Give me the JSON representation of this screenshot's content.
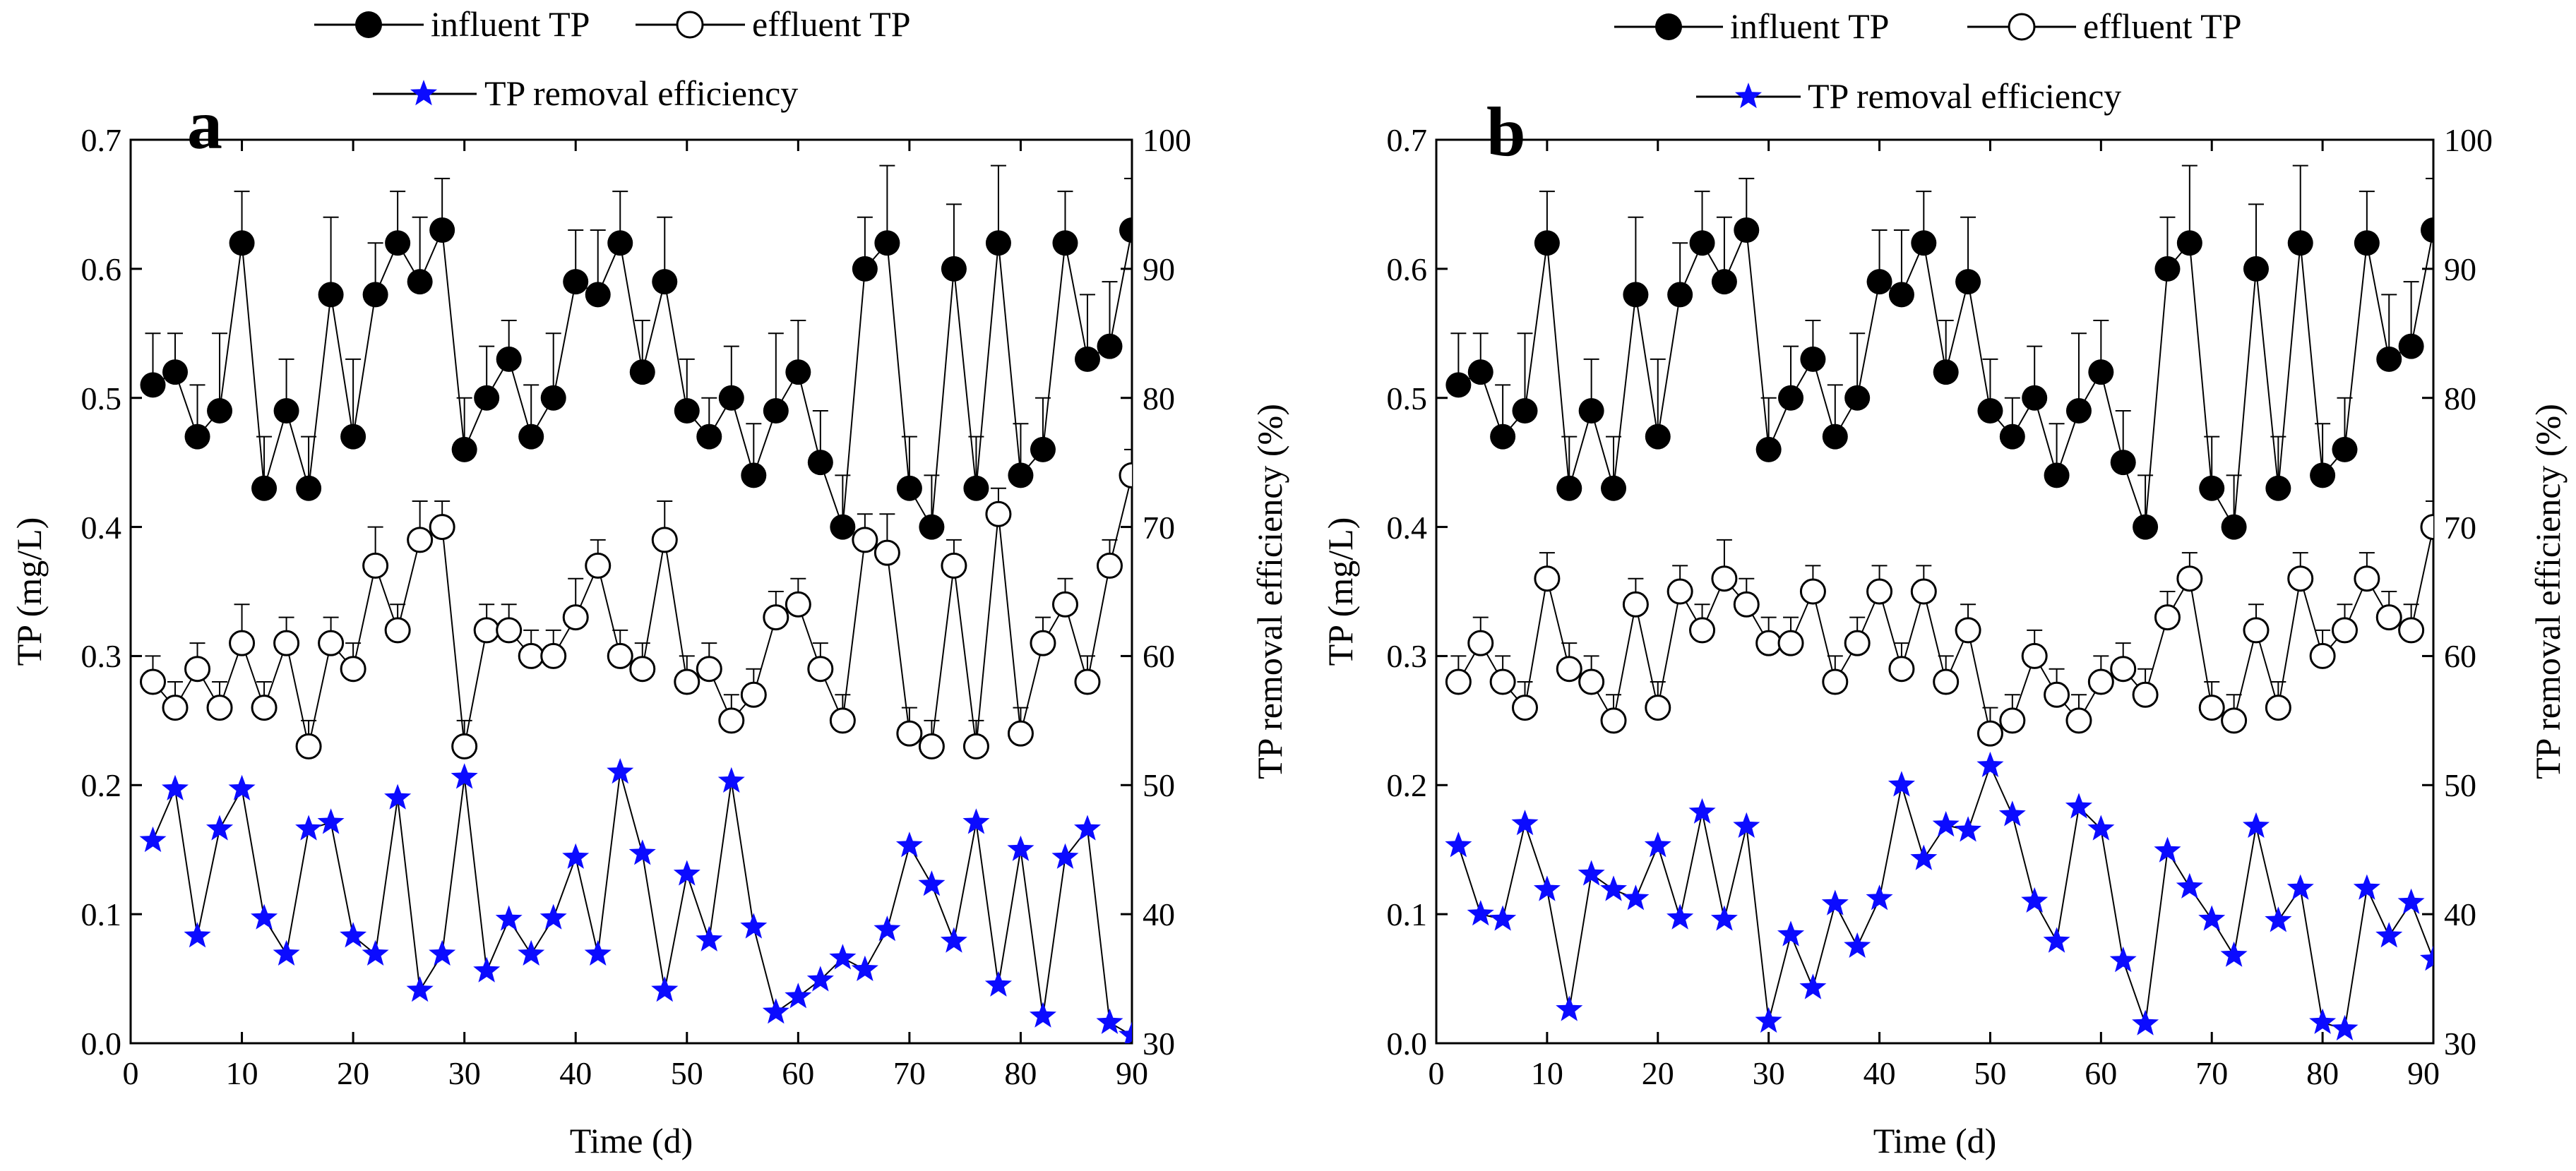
{
  "colors": {
    "axis": "#000000",
    "series": "#000000",
    "efficiency": "#0b0bff",
    "marker_fill_open": "#ffffff"
  },
  "legend": {
    "influent_label": "influent TP",
    "effluent_label": "effluent TP",
    "efficiency_label": "TP removal efficiency"
  },
  "chart_data": [
    {
      "type": "line",
      "panel_label": "a",
      "xlabel": "Time (d)",
      "ylabel": "TP (mg/L)",
      "y2label": "TP removal efficiency (%)",
      "xlim": [
        0,
        90
      ],
      "ylim": [
        0,
        0.7
      ],
      "y2lim": [
        30,
        100
      ],
      "xticks": [
        0,
        10,
        20,
        30,
        40,
        50,
        60,
        70,
        80,
        90
      ],
      "yticks": [
        0.0,
        0.1,
        0.2,
        0.3,
        0.4,
        0.5,
        0.6,
        0.7
      ],
      "y2ticks": [
        30,
        40,
        50,
        60,
        70,
        80,
        90,
        100
      ],
      "xtick_labels": [
        "0",
        "10",
        "20",
        "30",
        "40",
        "50",
        "60",
        "70",
        "80",
        "90"
      ],
      "ytick_labels": [
        "0.0",
        "0.1",
        "0.2",
        "0.3",
        "0.4",
        "0.5",
        "0.6",
        "0.7"
      ],
      "y2tick_labels": [
        "30",
        "40",
        "50",
        "60",
        "70",
        "80",
        "90",
        "100"
      ],
      "x": [
        2,
        4,
        6,
        8,
        10,
        12,
        14,
        16,
        18,
        20,
        22,
        24,
        26,
        28,
        30,
        32,
        34,
        36,
        38,
        40,
        42,
        44,
        46,
        48,
        50,
        52,
        54,
        56,
        58,
        60,
        62,
        64,
        66,
        68,
        70,
        72,
        74,
        76,
        78,
        80,
        82,
        84,
        86,
        88,
        90
      ],
      "series": [
        {
          "name": "influent TP",
          "axis": "left",
          "marker": "filled-circle",
          "values": [
            0.51,
            0.52,
            0.47,
            0.49,
            0.62,
            0.43,
            0.49,
            0.43,
            0.58,
            0.47,
            0.58,
            0.62,
            0.59,
            0.63,
            0.46,
            0.5,
            0.53,
            0.47,
            0.5,
            0.59,
            0.58,
            0.62,
            0.52,
            0.59,
            0.49,
            0.47,
            0.5,
            0.44,
            0.49,
            0.52,
            0.45,
            0.4,
            0.6,
            0.62,
            0.43,
            0.4,
            0.6,
            0.43,
            0.62,
            0.44,
            0.46,
            0.62,
            0.53,
            0.54,
            0.63
          ],
          "errors": [
            0.04,
            0.03,
            0.04,
            0.06,
            0.04,
            0.04,
            0.04,
            0.04,
            0.06,
            0.06,
            0.04,
            0.04,
            0.05,
            0.04,
            0.04,
            0.04,
            0.03,
            0.04,
            0.05,
            0.04,
            0.05,
            0.04,
            0.04,
            0.05,
            0.04,
            0.03,
            0.04,
            0.04,
            0.06,
            0.04,
            0.04,
            0.04,
            0.04,
            0.06,
            0.04,
            0.04,
            0.05,
            0.04,
            0.06,
            0.04,
            0.04,
            0.04,
            0.05,
            0.05,
            0.04
          ]
        },
        {
          "name": "effluent TP",
          "axis": "left",
          "marker": "open-circle",
          "values": [
            0.28,
            0.26,
            0.29,
            0.26,
            0.31,
            0.26,
            0.31,
            0.23,
            0.31,
            0.29,
            0.37,
            0.32,
            0.39,
            0.4,
            0.23,
            0.32,
            0.32,
            0.3,
            0.3,
            0.33,
            0.37,
            0.3,
            0.29,
            0.39,
            0.28,
            0.29,
            0.25,
            0.27,
            0.33,
            0.34,
            0.29,
            0.25,
            0.39,
            0.38,
            0.24,
            0.23,
            0.37,
            0.23,
            0.41,
            0.24,
            0.31,
            0.34,
            0.28,
            0.37,
            0.44
          ],
          "errors": [
            0.02,
            0.02,
            0.02,
            0.02,
            0.03,
            0.02,
            0.02,
            0.02,
            0.02,
            0.02,
            0.03,
            0.02,
            0.03,
            0.02,
            0.02,
            0.02,
            0.02,
            0.02,
            0.02,
            0.03,
            0.02,
            0.02,
            0.02,
            0.03,
            0.02,
            0.02,
            0.02,
            0.02,
            0.02,
            0.02,
            0.02,
            0.02,
            0.02,
            0.03,
            0.02,
            0.02,
            0.02,
            0.02,
            0.02,
            0.02,
            0.02,
            0.02,
            0.02,
            0.02,
            0.02
          ]
        },
        {
          "name": "TP removal efficiency",
          "axis": "right",
          "marker": "star",
          "values": [
            45.7,
            49.7,
            38.3,
            46.6,
            49.7,
            39.7,
            36.9,
            46.6,
            47.1,
            38.3,
            36.9,
            49.0,
            34.1,
            36.9,
            50.6,
            35.6,
            39.6,
            36.9,
            39.7,
            44.4,
            36.9,
            51.0,
            44.7,
            34.1,
            43.1,
            38.0,
            50.3,
            39.0,
            32.4,
            33.6,
            34.9,
            36.6,
            35.7,
            38.8,
            45.3,
            42.3,
            37.9,
            47.1,
            34.5,
            45.0,
            32.1,
            44.4,
            46.6,
            31.6,
            30.6
          ]
        }
      ]
    },
    {
      "type": "line",
      "panel_label": "b",
      "xlabel": "Time (d)",
      "ylabel": "TP (mg/L)",
      "y2label": "TP removal efficiency (%)",
      "xlim": [
        0,
        90
      ],
      "ylim": [
        0,
        0.7
      ],
      "y2lim": [
        30,
        100
      ],
      "xticks": [
        0,
        10,
        20,
        30,
        40,
        50,
        60,
        70,
        80,
        90
      ],
      "yticks": [
        0.0,
        0.1,
        0.2,
        0.3,
        0.4,
        0.5,
        0.6,
        0.7
      ],
      "y2ticks": [
        30,
        40,
        50,
        60,
        70,
        80,
        90,
        100
      ],
      "xtick_labels": [
        "0",
        "10",
        "20",
        "30",
        "40",
        "50",
        "60",
        "70",
        "80",
        "90"
      ],
      "ytick_labels": [
        "0.0",
        "0.1",
        "0.2",
        "0.3",
        "0.4",
        "0.5",
        "0.6",
        "0.7"
      ],
      "y2tick_labels": [
        "30",
        "40",
        "50",
        "60",
        "70",
        "80",
        "90",
        "100"
      ],
      "x": [
        2,
        4,
        6,
        8,
        10,
        12,
        14,
        16,
        18,
        20,
        22,
        24,
        26,
        28,
        30,
        32,
        34,
        36,
        38,
        40,
        42,
        44,
        46,
        48,
        50,
        52,
        54,
        56,
        58,
        60,
        62,
        64,
        66,
        68,
        70,
        72,
        74,
        76,
        78,
        80,
        82,
        84,
        86,
        88,
        90
      ],
      "series": [
        {
          "name": "influent TP",
          "axis": "left",
          "marker": "filled-circle",
          "values": [
            0.51,
            0.52,
            0.47,
            0.49,
            0.62,
            0.43,
            0.49,
            0.43,
            0.58,
            0.47,
            0.58,
            0.62,
            0.59,
            0.63,
            0.46,
            0.5,
            0.53,
            0.47,
            0.5,
            0.59,
            0.58,
            0.62,
            0.52,
            0.59,
            0.49,
            0.47,
            0.5,
            0.44,
            0.49,
            0.52,
            0.45,
            0.4,
            0.6,
            0.62,
            0.43,
            0.4,
            0.6,
            0.43,
            0.62,
            0.44,
            0.46,
            0.62,
            0.53,
            0.54,
            0.63
          ],
          "errors": [
            0.04,
            0.03,
            0.04,
            0.06,
            0.04,
            0.04,
            0.04,
            0.04,
            0.06,
            0.06,
            0.04,
            0.04,
            0.05,
            0.04,
            0.04,
            0.04,
            0.03,
            0.04,
            0.05,
            0.04,
            0.05,
            0.04,
            0.04,
            0.05,
            0.04,
            0.03,
            0.04,
            0.04,
            0.06,
            0.04,
            0.04,
            0.04,
            0.04,
            0.06,
            0.04,
            0.04,
            0.05,
            0.04,
            0.06,
            0.04,
            0.04,
            0.04,
            0.05,
            0.05,
            0.04
          ]
        },
        {
          "name": "effluent TP",
          "axis": "left",
          "marker": "open-circle",
          "values": [
            0.28,
            0.31,
            0.28,
            0.26,
            0.36,
            0.29,
            0.28,
            0.25,
            0.34,
            0.26,
            0.35,
            0.32,
            0.36,
            0.34,
            0.31,
            0.31,
            0.35,
            0.28,
            0.31,
            0.35,
            0.29,
            0.35,
            0.28,
            0.32,
            0.24,
            0.25,
            0.3,
            0.27,
            0.25,
            0.28,
            0.29,
            0.27,
            0.33,
            0.36,
            0.26,
            0.25,
            0.32,
            0.26,
            0.36,
            0.3,
            0.32,
            0.36,
            0.33,
            0.32,
            0.4
          ],
          "errors": [
            0.02,
            0.02,
            0.02,
            0.02,
            0.02,
            0.02,
            0.02,
            0.02,
            0.02,
            0.02,
            0.02,
            0.02,
            0.03,
            0.02,
            0.02,
            0.02,
            0.02,
            0.02,
            0.02,
            0.02,
            0.02,
            0.02,
            0.02,
            0.02,
            0.02,
            0.02,
            0.02,
            0.02,
            0.02,
            0.02,
            0.02,
            0.02,
            0.02,
            0.02,
            0.02,
            0.02,
            0.02,
            0.02,
            0.02,
            0.02,
            0.02,
            0.02,
            0.02,
            0.02,
            0.02
          ]
        },
        {
          "name": "TP removal efficiency",
          "axis": "right",
          "marker": "star",
          "values": [
            45.3,
            40.0,
            39.6,
            47.0,
            41.9,
            32.6,
            43.1,
            41.9,
            41.2,
            45.3,
            39.7,
            47.9,
            39.6,
            46.8,
            31.7,
            38.4,
            34.3,
            40.8,
            37.5,
            41.2,
            50.0,
            44.3,
            46.9,
            46.5,
            51.5,
            47.7,
            41.0,
            37.9,
            48.3,
            46.6,
            36.4,
            31.5,
            44.9,
            42.1,
            39.6,
            36.8,
            46.8,
            39.5,
            42.0,
            31.6,
            31.1,
            42.0,
            38.3,
            40.9,
            36.5
          ]
        }
      ]
    }
  ]
}
